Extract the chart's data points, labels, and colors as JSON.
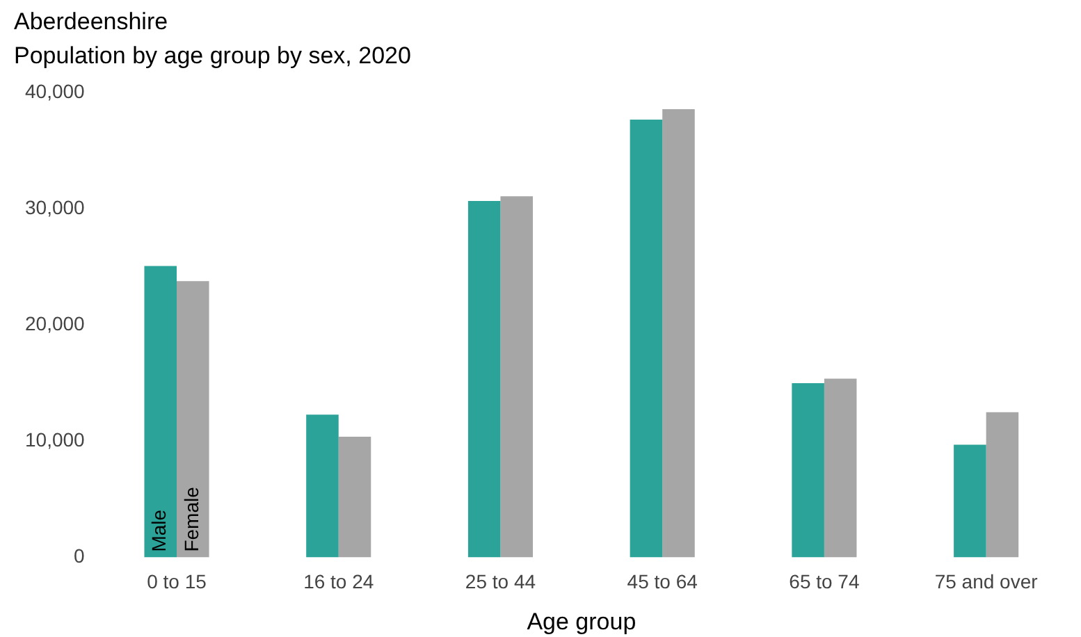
{
  "chart_data": {
    "type": "bar",
    "title": "Aberdeenshire",
    "subtitle": "Population by age group by sex, 2020",
    "xlabel": "Age group",
    "categories": [
      "0 to 15",
      "16 to 24",
      "25 to 44",
      "45 to 64",
      "65 to 74",
      "75 and over"
    ],
    "series": [
      {
        "name": "Male",
        "color": "#2ca398",
        "values": [
          25100,
          12300,
          30700,
          37700,
          15000,
          9700
        ]
      },
      {
        "name": "Female",
        "color": "#a6a6a6",
        "values": [
          23800,
          10400,
          31100,
          38600,
          15400,
          12500
        ]
      }
    ],
    "ylim": [
      0,
      40000
    ],
    "yticks": [
      0,
      {
        "value": 10000,
        "label": "10,000"
      },
      {
        "value": 20000,
        "label": "20,000"
      },
      {
        "value": 30000,
        "label": "30,000"
      },
      {
        "value": 40000,
        "label": "40,000"
      }
    ],
    "grid": false,
    "legend": false
  }
}
